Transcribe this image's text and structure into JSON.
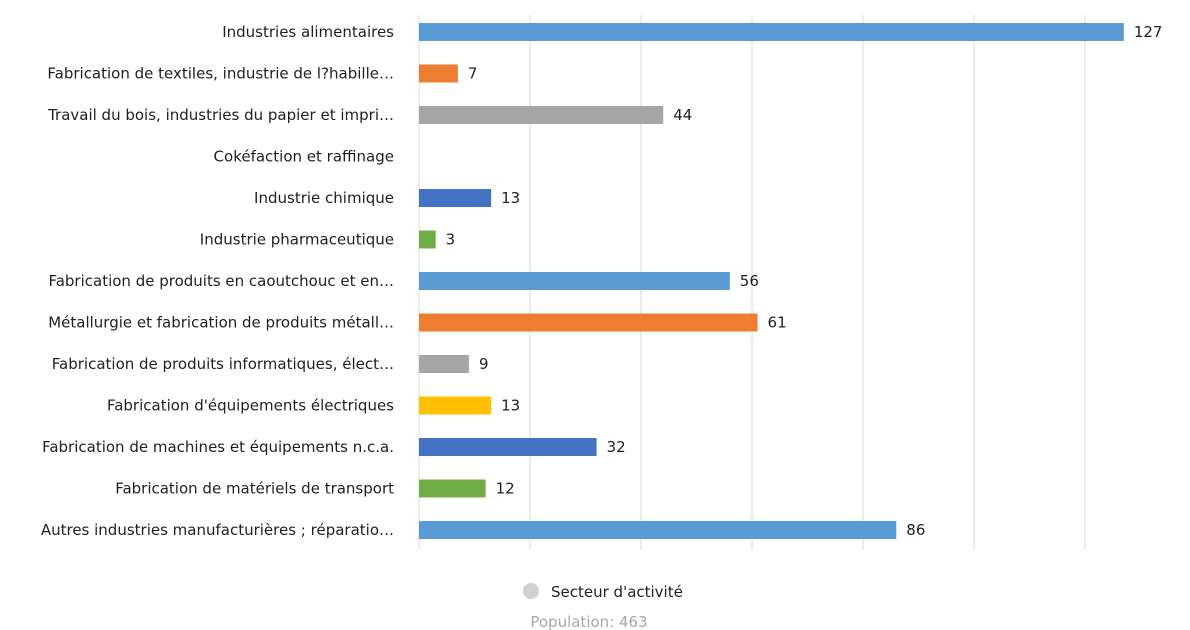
{
  "chart_data": {
    "type": "bar",
    "orientation": "horizontal",
    "categories": [
      "Industries alimentaires",
      "Fabrication de textiles, industrie de l?habille…",
      "Travail du bois, industries du papier et impri…",
      "Cokéfaction et raffinage",
      "Industrie chimique",
      "Industrie pharmaceutique",
      "Fabrication de produits en caoutchouc et en…",
      "Métallurgie et fabrication de produits métall…",
      "Fabrication de produits informatiques, élect…",
      "Fabrication d'équipements électriques",
      "Fabrication de machines et équipements n.c.a.",
      "Fabrication de matériels de transport",
      "Autres industries manufacturières ; réparatio…"
    ],
    "values": [
      127,
      7,
      44,
      null,
      13,
      3,
      56,
      61,
      9,
      13,
      32,
      12,
      86
    ],
    "bar_colors": [
      "#5b9bd5",
      "#ed7d31",
      "#a5a5a5",
      "#ffc000",
      "#4472c4",
      "#70ad47",
      "#5b9bd5",
      "#ed7d31",
      "#a5a5a5",
      "#ffc000",
      "#4472c4",
      "#70ad47",
      "#5b9bd5"
    ],
    "xlim": [
      0,
      140
    ],
    "grid_step": 20,
    "grid": true,
    "legend": {
      "label": "Secteur d'activité",
      "marker_color": "#d0d0d0",
      "placement": "bottom"
    },
    "footer": "Population: 463"
  }
}
